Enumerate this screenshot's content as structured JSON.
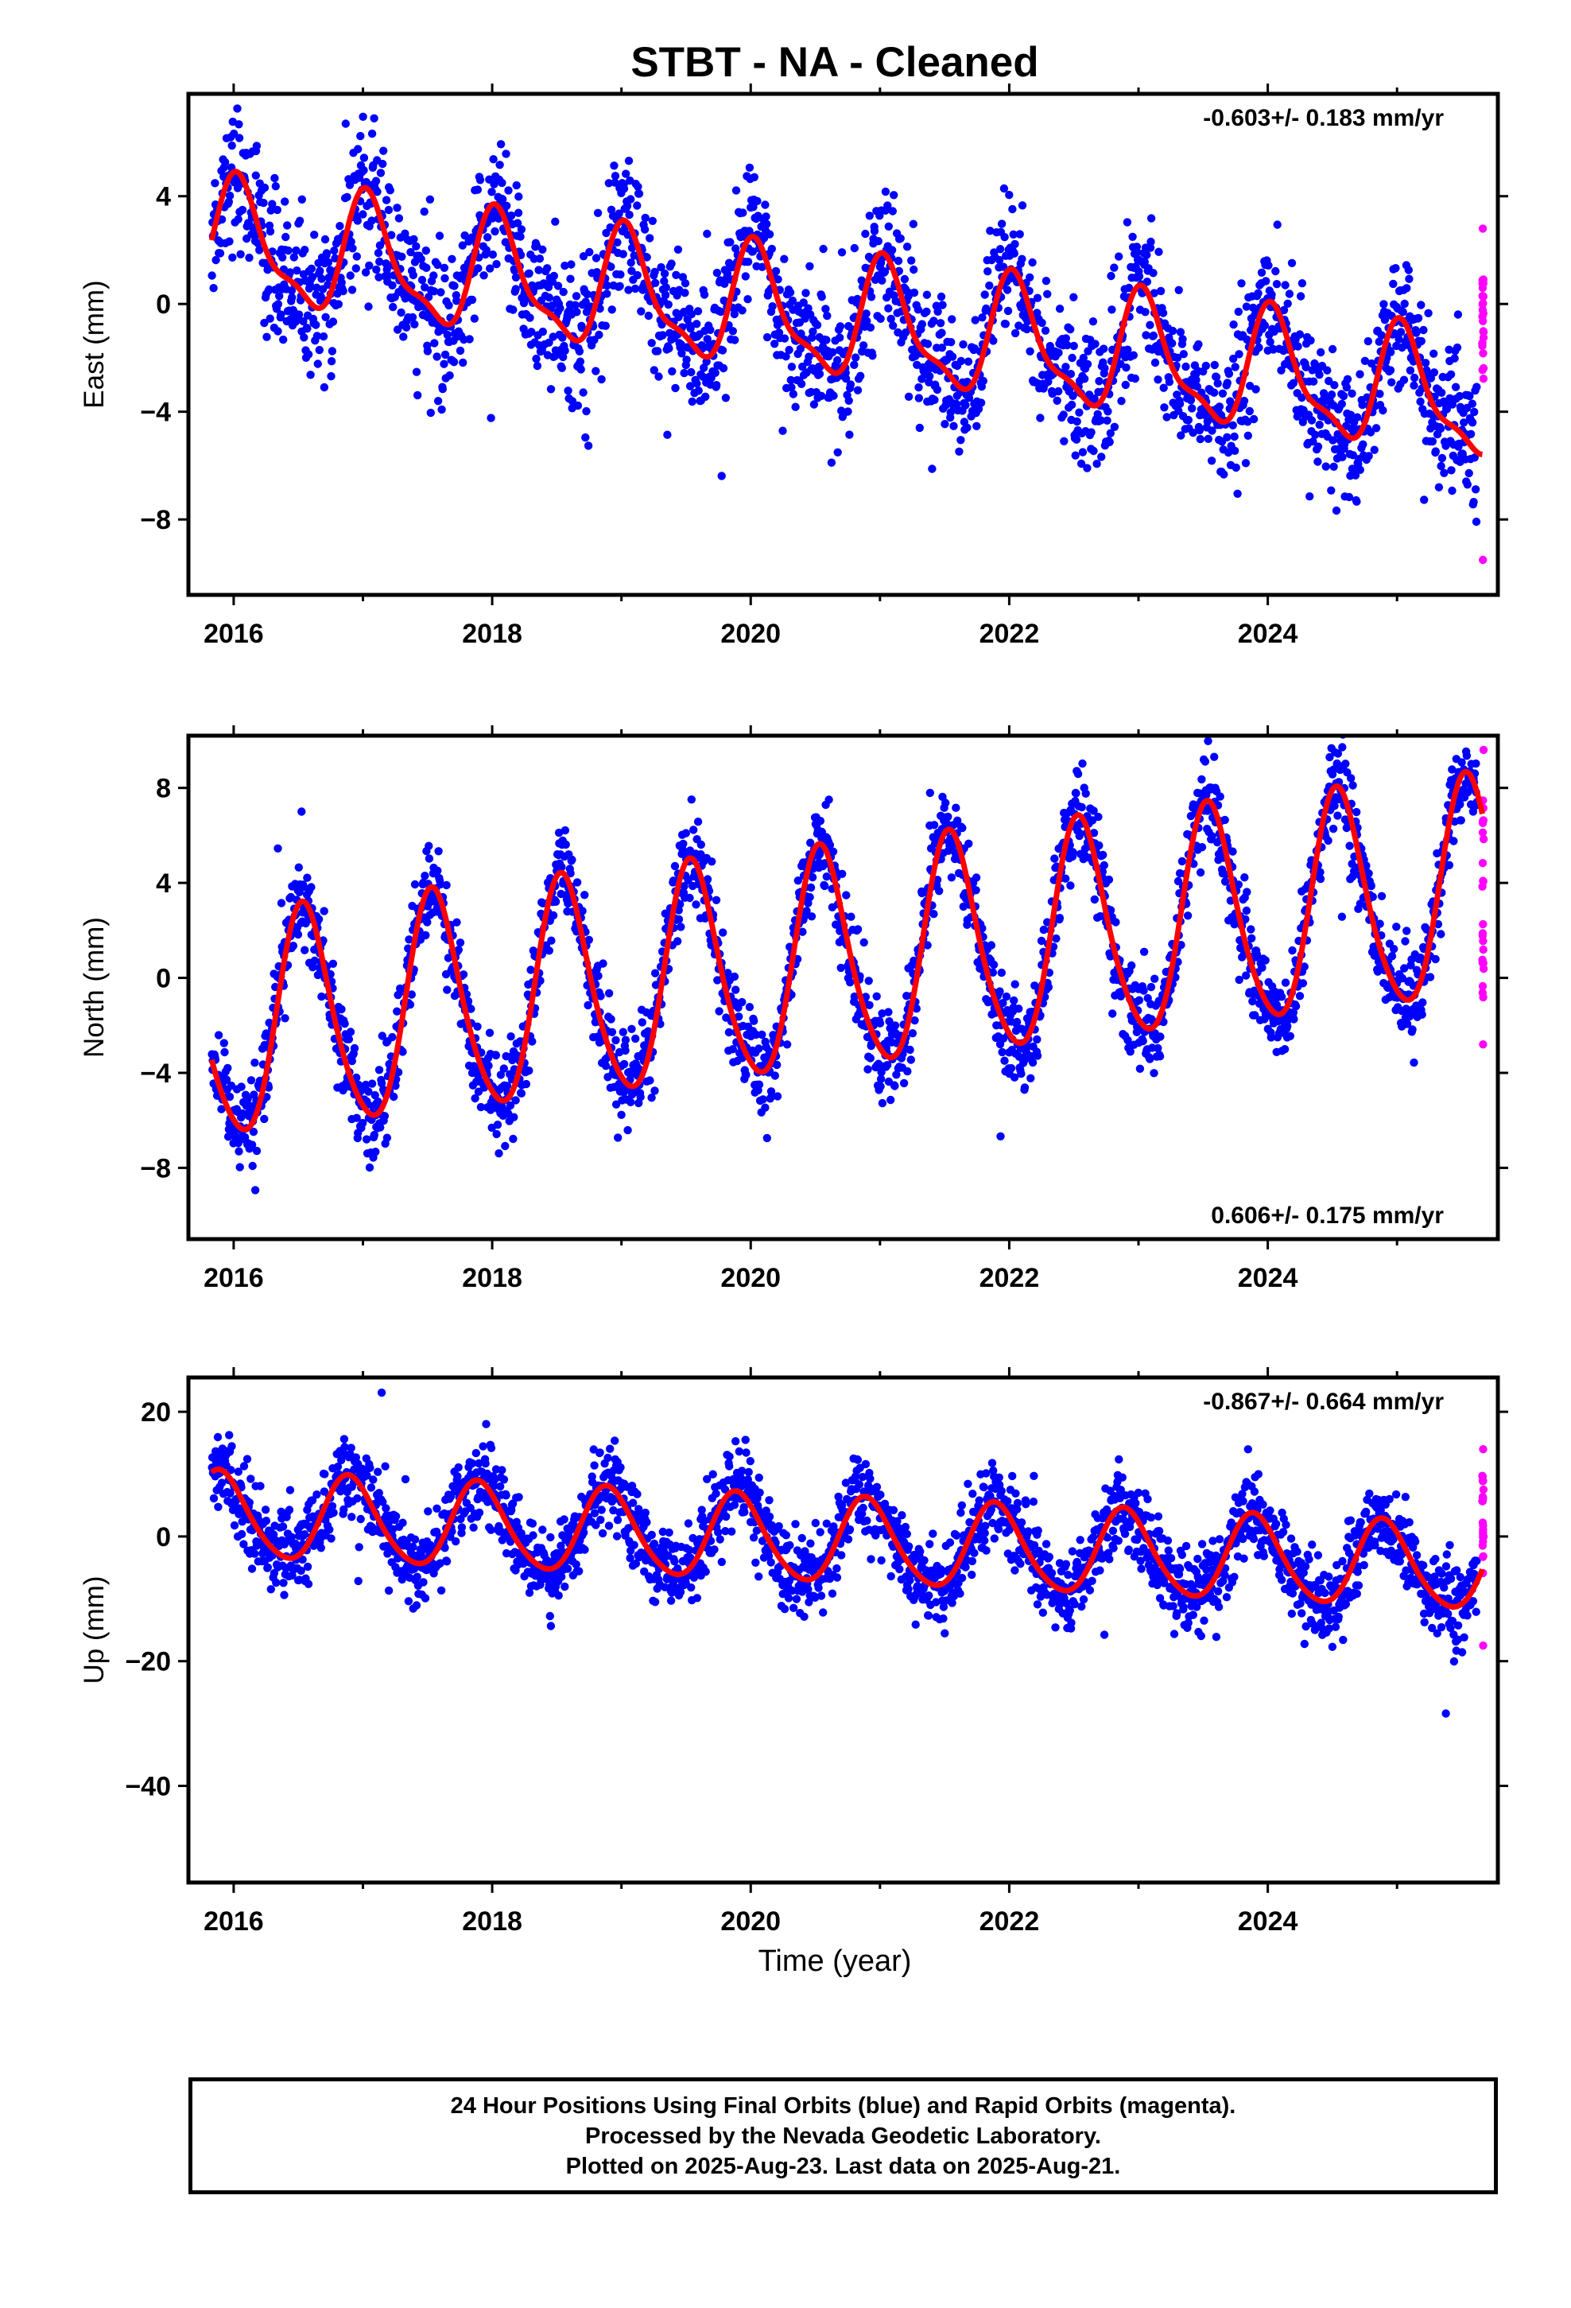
{
  "chart_data": {
    "title": "STBT  - NA - Cleaned",
    "xlabel": "Time (year)",
    "type": "scatter",
    "x_range": [
      2015.65,
      2025.78
    ],
    "x_ticks": [
      2016,
      2018,
      2020,
      2022,
      2024
    ],
    "colors": {
      "final": "#0000ff",
      "rapid": "#ff00ff",
      "model": "#ff0000"
    },
    "panels": [
      {
        "name": "east",
        "ylabel": "East (mm)",
        "velocity_text": "-0.603+/- 0.183 mm/yr",
        "velocity_position": "top-right",
        "ylim": [
          -10.8,
          7.8
        ],
        "y_ticks": [
          -8,
          -4,
          0,
          4
        ],
        "model": {
          "trend_start": 2.2,
          "trend_slope": -0.603,
          "amplitude": 2.1,
          "semiannual": 0.7,
          "peak_year_fraction": 0.05,
          "noise_sd": 1.3,
          "rapid_range": [
            -9.5,
            2.8
          ]
        }
      },
      {
        "name": "north",
        "ylabel": "North (mm)",
        "velocity_text": "0.606+/- 0.175 mm/yr",
        "velocity_position": "bottom-right",
        "ylim": [
          -11.0,
          10.2
        ],
        "y_ticks": [
          -8,
          -4,
          0,
          4,
          8
        ],
        "model": {
          "trend_start": -2.2,
          "trend_slope": 0.606,
          "amplitude": 4.6,
          "semiannual": 0.6,
          "peak_year_fraction": 0.55,
          "noise_sd": 1.0,
          "rapid_range": [
            -2.8,
            9.6
          ]
        }
      },
      {
        "name": "up",
        "ylabel": "Up (mm)",
        "velocity_text": "-0.867+/- 0.664 mm/yr",
        "velocity_position": "top-right",
        "ylim": [
          -55.5,
          25.5
        ],
        "y_ticks": [
          -40,
          -20,
          0,
          20
        ],
        "model": {
          "trend_start": 3.2,
          "trend_slope": -0.867,
          "amplitude": 6.8,
          "semiannual": 0.8,
          "peak_year_fraction": 0.9,
          "noise_sd": 3.3,
          "rapid_range": [
            -17.5,
            14.0
          ]
        }
      }
    ]
  },
  "footer": {
    "line1": "24 Hour Positions Using Final Orbits (blue) and Rapid Orbits (magenta).",
    "line2": "Processed by the Nevada Geodetic Laboratory.",
    "line3": "Plotted on 2025-Aug-23. Last data on 2025-Aug-21."
  }
}
